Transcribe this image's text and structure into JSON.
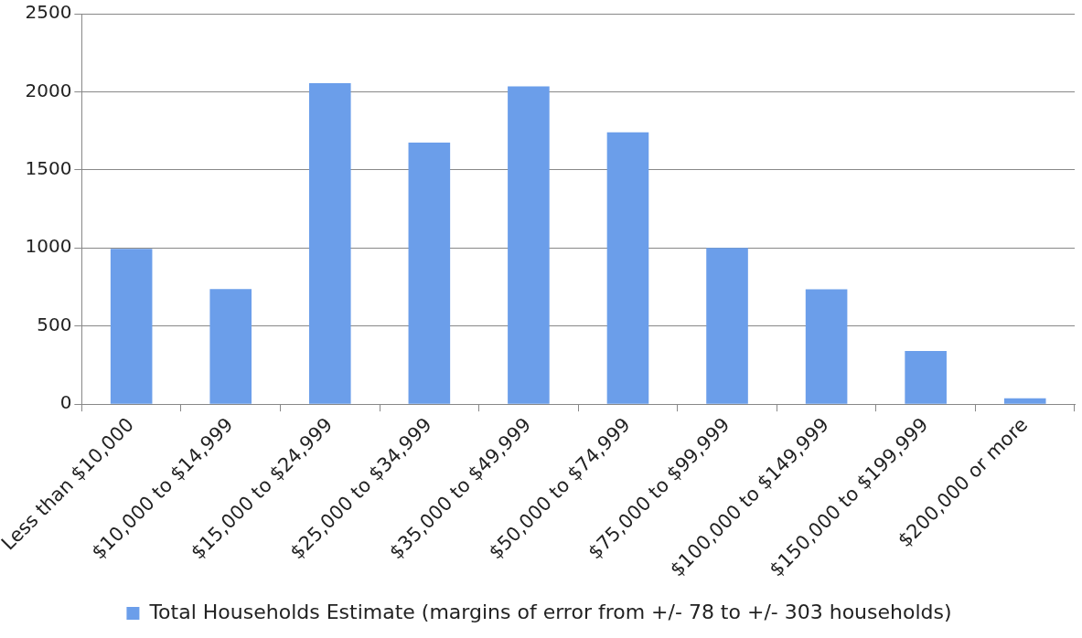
{
  "chart_data": {
    "type": "bar",
    "categories": [
      "Less than $10,000",
      "$10,000 to $14,999",
      "$15,000 to $24,999",
      "$25,000 to $34,999",
      "$35,000 to $49,999",
      "$50,000 to $74,999",
      "$75,000 to $99,999",
      "$100,000 to $149,999",
      "$150,000 to $199,999",
      "$200,000 or more"
    ],
    "series": [
      {
        "name": "Total Households Estimate (margins of error from +/- 78 to +/- 303 households)",
        "color": "#6b9eea",
        "values": [
          995,
          737,
          2055,
          1675,
          2035,
          1740,
          1000,
          735,
          340,
          38
        ]
      }
    ],
    "ylim": [
      0,
      2500
    ],
    "yticks": [
      0,
      500,
      1000,
      1500,
      2000,
      2500
    ],
    "grid": "y",
    "legend": "bottom"
  }
}
